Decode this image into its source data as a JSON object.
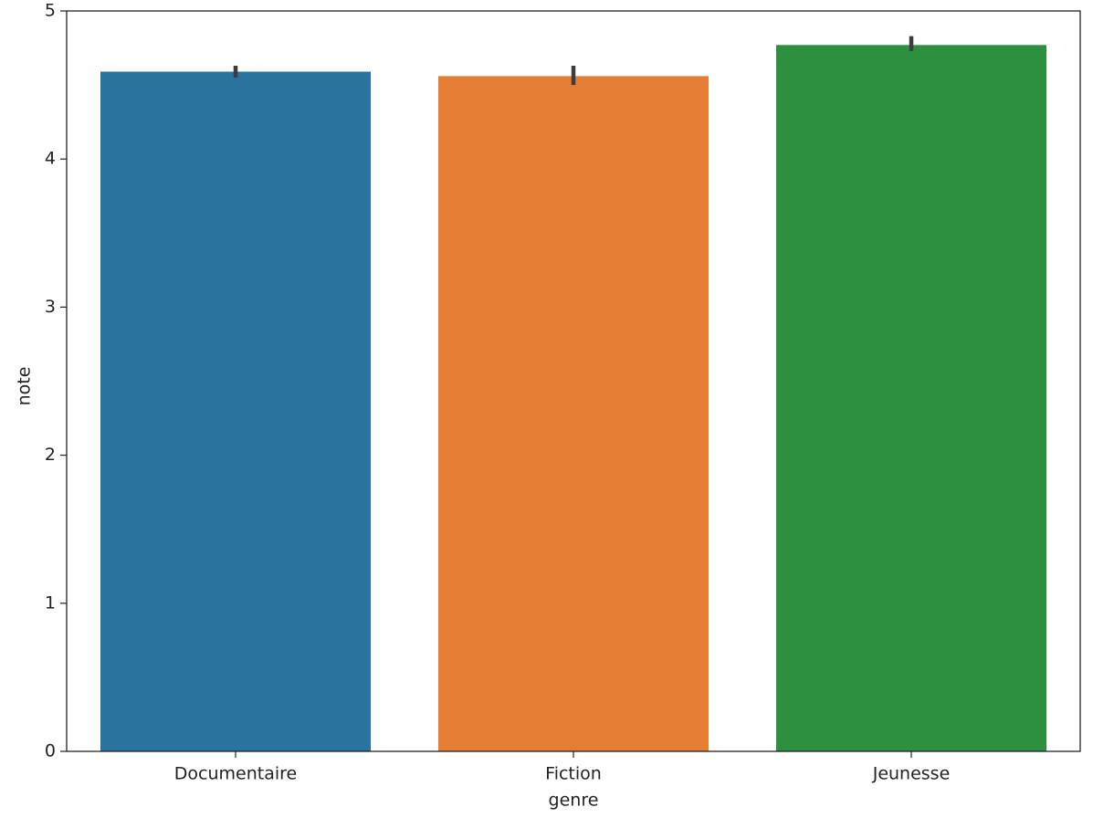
{
  "chart_data": {
    "type": "bar",
    "x_label": "genre",
    "y_label": "note",
    "categories": [
      "Documentaire",
      "Fiction",
      "Jeunesse"
    ],
    "values": [
      4.59,
      4.56,
      4.77
    ],
    "ci_low": [
      4.55,
      4.5,
      4.73
    ],
    "ci_high": [
      4.63,
      4.63,
      4.83
    ],
    "colors": [
      "#2a72a0",
      "#e57e34",
      "#2c903e"
    ],
    "ylim": [
      0,
      5
    ],
    "yticks": [
      0,
      1,
      2,
      3,
      4,
      5
    ],
    "grid": false
  }
}
